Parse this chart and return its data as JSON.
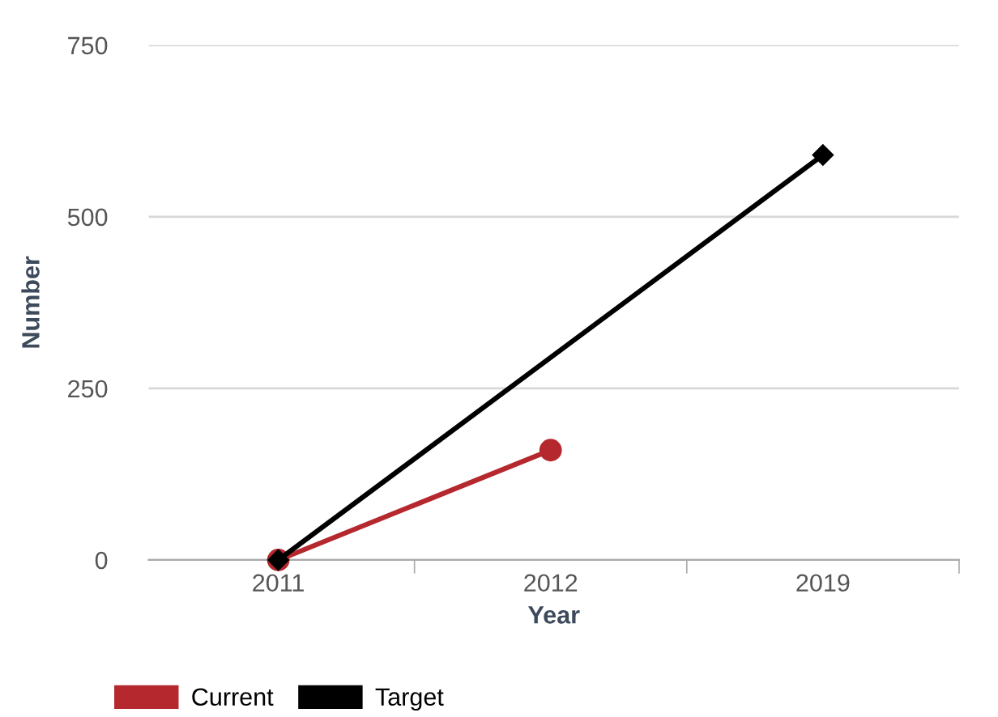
{
  "chart_data": {
    "type": "line",
    "xlabel": "Year",
    "ylabel": "Number",
    "categories": [
      "2011",
      "2012",
      "2019"
    ],
    "series": [
      {
        "name": "Current",
        "color": "#b5282e",
        "values": [
          0,
          160,
          null
        ],
        "marker": "circle"
      },
      {
        "name": "Target",
        "color": "#000000",
        "values": [
          0,
          null,
          590
        ],
        "marker": "diamond"
      }
    ],
    "ylim": [
      0,
      750
    ],
    "yticks": [
      0,
      250,
      500,
      750
    ],
    "grid": "y",
    "legend": "bottom left"
  }
}
